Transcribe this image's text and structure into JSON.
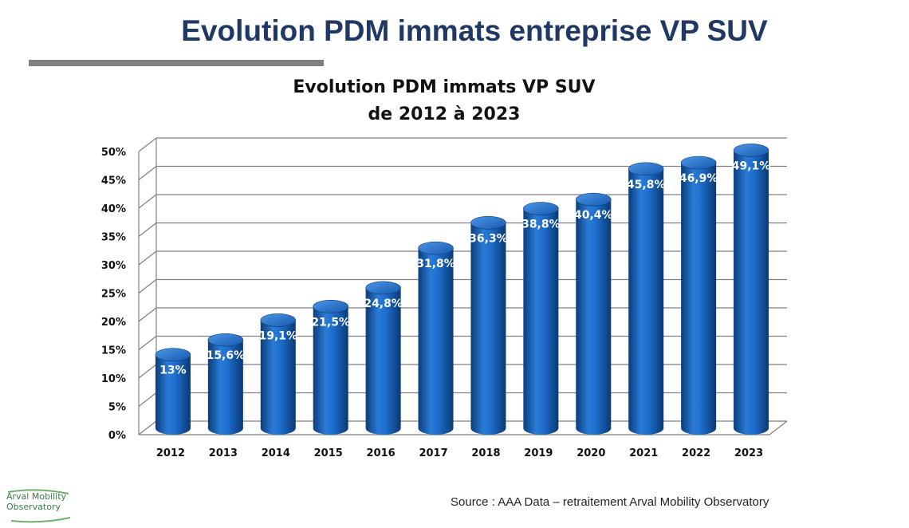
{
  "page": {
    "title": "Evolution PDM immats entreprise VP SUV",
    "source": "Source : AAA Data – retraitement Arval Mobility Observatory",
    "logo": {
      "line1": "Arval Mobility",
      "line2": "Observatory"
    }
  },
  "colors": {
    "title": "#1f3864",
    "rule": "#808080",
    "bar_dark": "#0b3d7a",
    "bar_mid": "#1f6fd0",
    "bar_light": "#3d8ae0",
    "grid": "#808080"
  },
  "chart_data": {
    "type": "bar",
    "title_lines": [
      "Evolution PDM immats VP SUV",
      "de 2012 à 2023"
    ],
    "categories": [
      "2012",
      "2013",
      "2014",
      "2015",
      "2016",
      "2017",
      "2018",
      "2019",
      "2020",
      "2021",
      "2022",
      "2023"
    ],
    "values": [
      13,
      15.6,
      19.1,
      21.5,
      24.8,
      31.8,
      36.3,
      38.8,
      40.4,
      45.8,
      46.9,
      49.1
    ],
    "data_labels": [
      "13%",
      "15,6%",
      "19,1%",
      "21,5%",
      "24,8%",
      "31,8%",
      "36,3%",
      "38,8%",
      "40,4%",
      "45,8%",
      "46,9%",
      "49,1%"
    ],
    "y_ticks": [
      "0%",
      "5%",
      "10%",
      "15%",
      "20%",
      "25%",
      "30%",
      "35%",
      "40%",
      "45%",
      "50%"
    ],
    "y_tick_values": [
      0,
      5,
      10,
      15,
      20,
      25,
      30,
      35,
      40,
      45,
      50
    ],
    "ylim": [
      0,
      50
    ],
    "xlabel": "",
    "ylabel": "",
    "grid": true,
    "style": "3d-cylinder"
  }
}
